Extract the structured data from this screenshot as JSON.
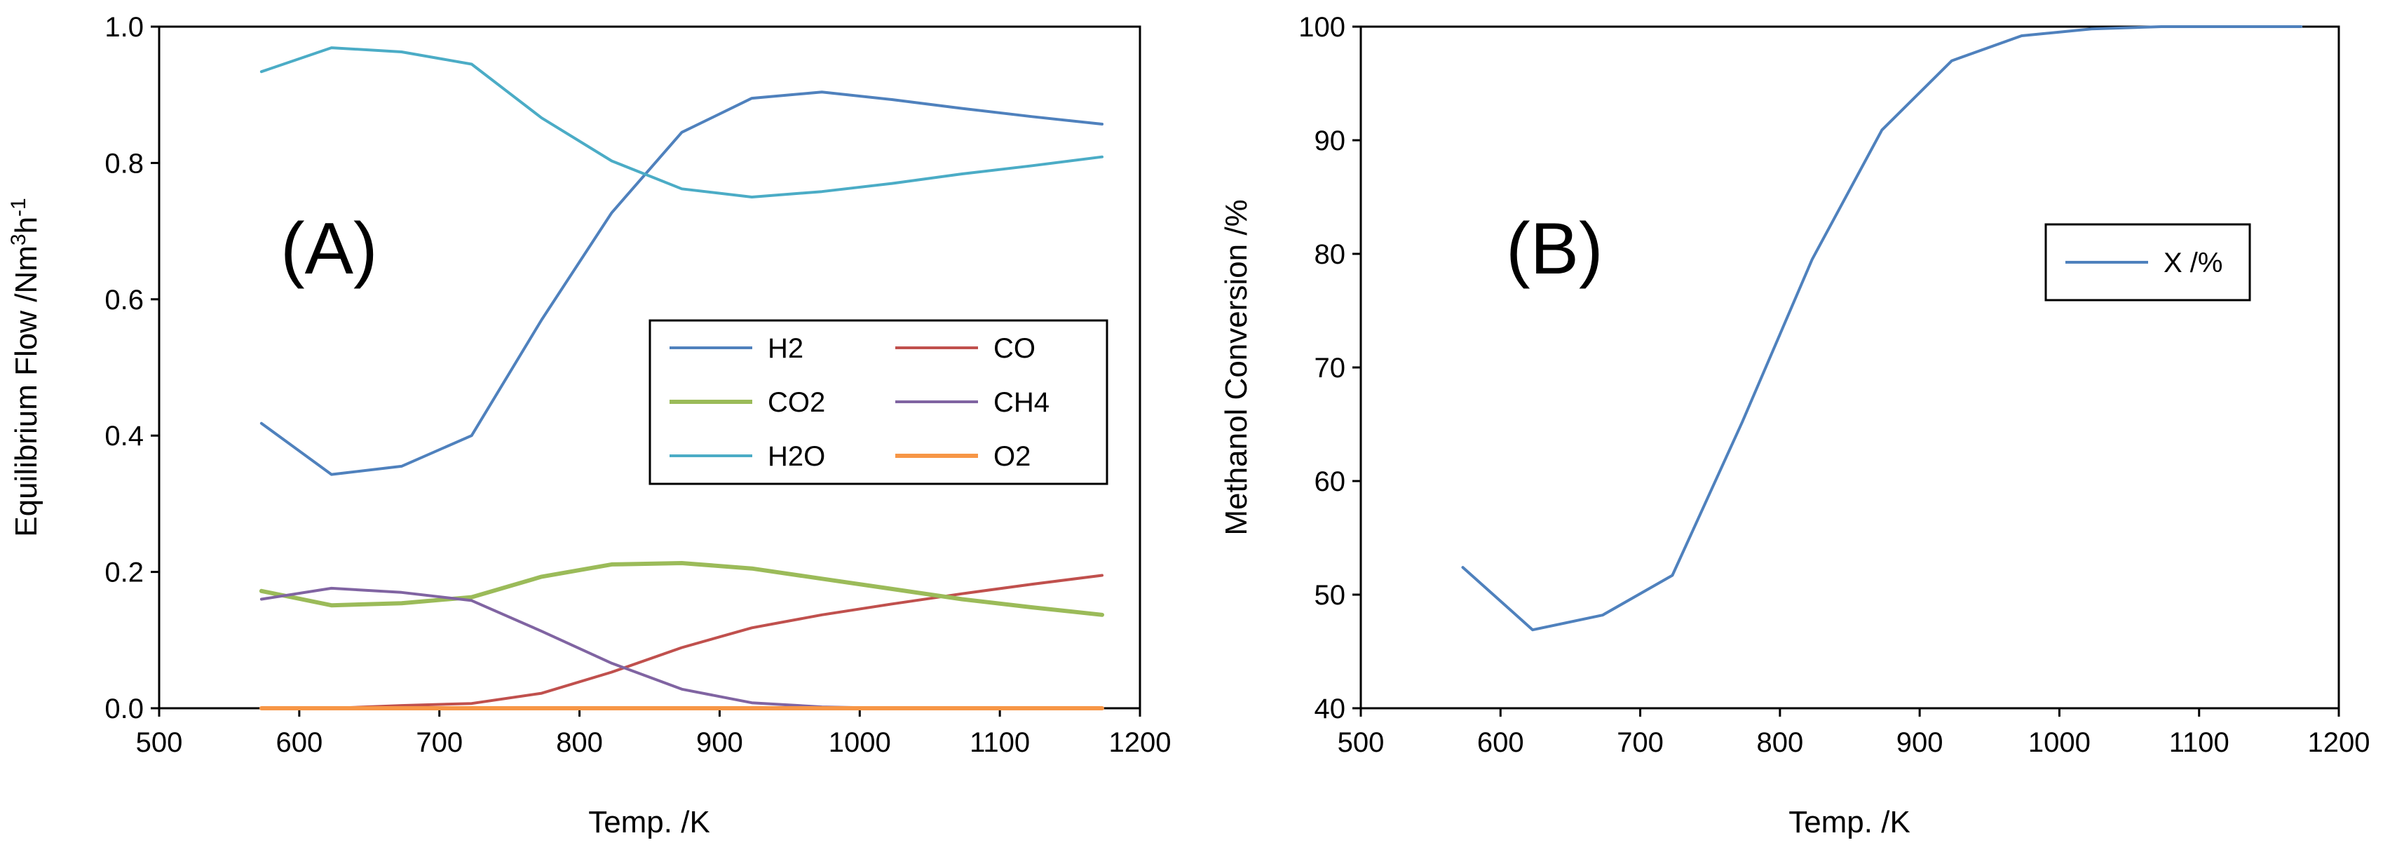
{
  "chart_data": [
    {
      "type": "line",
      "panel_label": "(A)",
      "xlabel": "Temp. /K",
      "ylabel": "Equilibrium Flow /Nm",
      "ylabel_sup": "3",
      "ylabel_mid": "h",
      "ylabel_sup2": "-1",
      "xlim": [
        500,
        1200
      ],
      "ylim": [
        0,
        1.0
      ],
      "xticks": [
        500,
        600,
        700,
        800,
        900,
        1000,
        1100,
        1200
      ],
      "yticks": [
        "0.0",
        "0.2",
        "0.4",
        "0.6",
        "0.8",
        "1.0"
      ],
      "x": [
        573,
        623,
        673,
        723,
        773,
        823,
        873,
        923,
        973,
        1023,
        1073,
        1123,
        1173
      ],
      "legend": {
        "placement": "center-right",
        "columns": 2
      },
      "series": [
        {
          "name": "H2",
          "color": "#4F81BD",
          "values": [
            0.418,
            0.343,
            0.355,
            0.4,
            0.57,
            0.727,
            0.845,
            0.895,
            0.904,
            0.893,
            0.88,
            0.868,
            0.857
          ]
        },
        {
          "name": "CO",
          "color": "#C0504D",
          "values": [
            0.0,
            0.0,
            0.004,
            0.007,
            0.022,
            0.053,
            0.089,
            0.118,
            0.137,
            0.153,
            0.168,
            0.182,
            0.195
          ]
        },
        {
          "name": "CO2",
          "color": "#9BBB59",
          "values": [
            0.172,
            0.151,
            0.154,
            0.163,
            0.193,
            0.211,
            0.213,
            0.205,
            0.19,
            0.175,
            0.16,
            0.148,
            0.137
          ]
        },
        {
          "name": "CH4",
          "color": "#8064A2",
          "values": [
            0.16,
            0.176,
            0.17,
            0.158,
            0.113,
            0.066,
            0.028,
            0.008,
            0.002,
            0.0,
            0.0,
            0.0,
            0.0
          ]
        },
        {
          "name": "H2O",
          "color": "#4BACC6",
          "values": [
            0.934,
            0.969,
            0.963,
            0.945,
            0.866,
            0.803,
            0.762,
            0.75,
            0.758,
            0.77,
            0.784,
            0.796,
            0.809
          ]
        },
        {
          "name": "O2",
          "color": "#F79646",
          "values": [
            0.0,
            0.0,
            0.0,
            0.0,
            0.0,
            0.0,
            0.0,
            0.0,
            0.0,
            0.0,
            0.0,
            0.0,
            0.0
          ]
        }
      ]
    },
    {
      "type": "line",
      "panel_label": "(B)",
      "xlabel": "Temp. /K",
      "ylabel": "Methanol Conversion /%",
      "xlim": [
        500,
        1200
      ],
      "ylim": [
        40,
        100
      ],
      "xticks": [
        500,
        600,
        700,
        800,
        900,
        1000,
        1100,
        1200
      ],
      "yticks": [
        "40",
        "50",
        "60",
        "70",
        "80",
        "90",
        "100"
      ],
      "x": [
        573,
        623,
        673,
        723,
        773,
        823,
        873,
        923,
        973,
        1023,
        1073,
        1123,
        1173
      ],
      "legend": {
        "placement": "upper-right",
        "columns": 1
      },
      "series": [
        {
          "name": "X /%",
          "color": "#4F81BD",
          "values": [
            52.4,
            46.9,
            48.2,
            51.7,
            65.2,
            79.5,
            90.9,
            97.0,
            99.2,
            99.8,
            100.0,
            100.0,
            100.0
          ]
        }
      ]
    }
  ]
}
